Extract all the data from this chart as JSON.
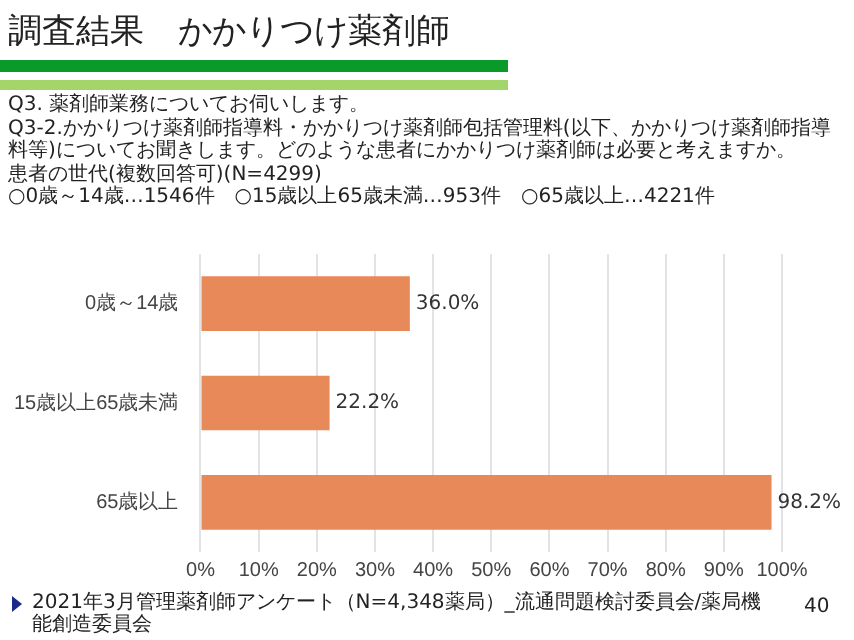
{
  "chart_data": {
    "type": "bar",
    "orientation": "horizontal",
    "title": "調査結果　かかりつけ薬剤師",
    "annotations": [
      "Q3. 薬剤師業務についてお伺いします。",
      "Q3-2.かかりつけ薬剤師指導料・かかりつけ薬剤師包括管理料(以下、かかりつけ薬剤師指導料等)についてお聞きします。どのような患者にかかりつけ薬剤師は必要と考えますか。",
      "患者の世代(複数回答可)(N=4299)",
      "○0歳～14歳…1546件　○15歳以上65歳未満…953件　○65歳以上…4221件",
      "2021年3月管理薬剤師アンケート（N=4,348薬局）_流通問題検討委員会/薬局機能創造委員会",
      "40"
    ],
    "categories": [
      "0歳～14歳",
      "15歳以上65歳未満",
      "65歳以上"
    ],
    "values": [
      36.0,
      22.2,
      98.2
    ],
    "color": "#e8895a",
    "data_labels": true,
    "value_labels": [
      "36.0%",
      "22.2%",
      "98.2%"
    ],
    "xlim": [
      0,
      100
    ],
    "xticks": [
      {
        "value": 0,
        "label": "0%"
      },
      {
        "value": 10,
        "label": "10%"
      },
      {
        "value": 20,
        "label": "20%"
      },
      {
        "value": 30,
        "label": "30%"
      },
      {
        "value": 40,
        "label": "40%"
      },
      {
        "value": 50,
        "label": "50%"
      },
      {
        "value": 60,
        "label": "60%"
      },
      {
        "value": 70,
        "label": "70%"
      },
      {
        "value": 80,
        "label": "80%"
      },
      {
        "value": 90,
        "label": "90%"
      },
      {
        "value": 100,
        "label": "100%"
      }
    ],
    "grid": "x",
    "legend": false
  }
}
